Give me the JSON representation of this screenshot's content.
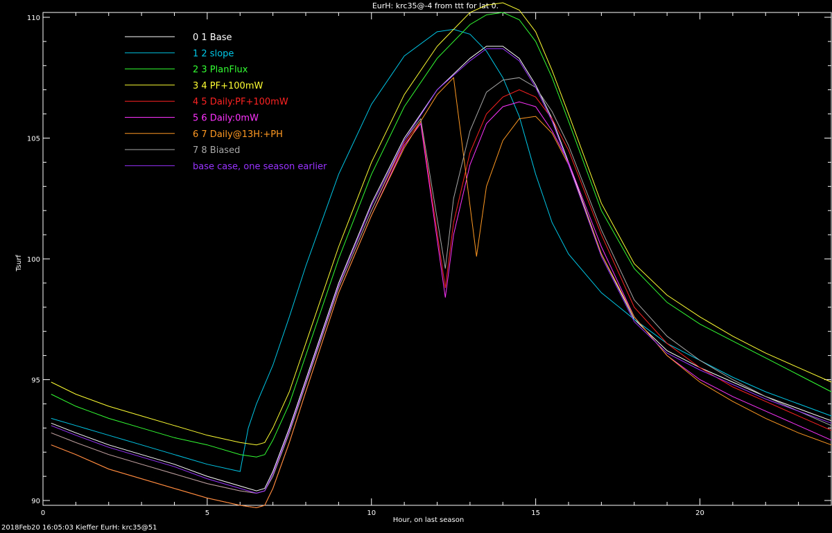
{
  "footer": "2018Feb20 16:05:03 Kieffer EurH: krc35@51",
  "chart_data": {
    "type": "line",
    "title": "EurH: krc35@-4 from ttt for lat 0.",
    "xlabel": "Hour, on last season",
    "ylabel": "Tsurf",
    "xlim": [
      0,
      24
    ],
    "ylim": [
      89.8,
      110.2
    ],
    "xticks": [
      0,
      5,
      10,
      15,
      20
    ],
    "yticks": [
      90,
      95,
      100,
      105,
      110
    ],
    "grid": false,
    "legend_position": "top-left",
    "series": [
      {
        "name": "0 1 Base",
        "color": "#ffffff",
        "x": [
          0.25,
          1,
          2,
          3,
          4,
          5,
          6,
          6.5,
          6.75,
          7,
          7.5,
          8,
          9,
          10,
          11,
          12,
          13,
          13.5,
          14,
          14.5,
          15,
          15.5,
          16,
          17,
          18,
          19,
          20,
          21,
          22,
          23,
          24
        ],
        "y": [
          93.2,
          92.8,
          92.3,
          91.9,
          91.5,
          91.0,
          90.6,
          90.4,
          90.5,
          91.2,
          93.0,
          95.0,
          99.0,
          102.3,
          105.0,
          107.0,
          108.3,
          108.8,
          108.8,
          108.3,
          107.2,
          105.8,
          104.0,
          100.2,
          97.5,
          96.2,
          95.5,
          94.9,
          94.3,
          93.8,
          93.3
        ]
      },
      {
        "name": "1 2 slope",
        "color": "#00c8e8",
        "x": [
          0.25,
          1,
          2,
          3,
          4,
          5,
          6,
          6.25,
          6.5,
          7,
          7.5,
          8,
          9,
          10,
          11,
          12,
          12.5,
          13,
          13.5,
          14,
          14.5,
          15,
          15.5,
          16,
          17,
          18,
          19,
          20,
          21,
          22,
          23,
          24
        ],
        "y": [
          93.4,
          93.1,
          92.7,
          92.3,
          91.9,
          91.5,
          91.2,
          93.0,
          94.0,
          95.6,
          97.6,
          99.7,
          103.5,
          106.4,
          108.4,
          109.4,
          109.5,
          109.3,
          108.6,
          107.5,
          105.9,
          103.5,
          101.5,
          100.2,
          98.6,
          97.5,
          96.5,
          95.8,
          95.1,
          94.5,
          94.0,
          93.5
        ]
      },
      {
        "name": "2 3 PlanFlux",
        "color": "#33ff33",
        "x": [
          0.25,
          1,
          2,
          3,
          4,
          5,
          6,
          6.5,
          6.75,
          7,
          7.5,
          8,
          9,
          10,
          11,
          12,
          13,
          13.5,
          14,
          14.5,
          15,
          15.5,
          16,
          17,
          18,
          19,
          20,
          21,
          22,
          23,
          24
        ],
        "y": [
          94.4,
          93.9,
          93.4,
          93.0,
          92.6,
          92.3,
          91.9,
          91.8,
          91.9,
          92.5,
          94.0,
          96.0,
          100.0,
          103.5,
          106.3,
          108.3,
          109.7,
          110.1,
          110.2,
          109.9,
          109.0,
          107.5,
          105.7,
          102.0,
          99.6,
          98.2,
          97.3,
          96.6,
          95.9,
          95.2,
          94.5
        ]
      },
      {
        "name": "3 4 PF+100mW",
        "color": "#ffff33",
        "x": [
          0.25,
          1,
          2,
          3,
          4,
          5,
          6,
          6.5,
          6.75,
          7,
          7.5,
          8,
          9,
          10,
          11,
          12,
          13,
          13.5,
          14,
          14.5,
          15,
          15.5,
          16,
          17,
          18,
          19,
          20,
          21,
          22,
          23,
          24
        ],
        "y": [
          94.9,
          94.4,
          93.9,
          93.5,
          93.1,
          92.7,
          92.4,
          92.3,
          92.4,
          93.0,
          94.5,
          96.5,
          100.5,
          104.0,
          106.8,
          108.8,
          110.2,
          110.5,
          110.6,
          110.3,
          109.4,
          107.8,
          106.0,
          102.3,
          99.8,
          98.5,
          97.6,
          96.8,
          96.1,
          95.5,
          94.9
        ]
      },
      {
        "name": "4 5 Daily:PF+100mW",
        "color": "#ff2222",
        "x": [
          0.25,
          1,
          2,
          3,
          4,
          5,
          6,
          6.5,
          6.75,
          7,
          7.5,
          8,
          9,
          10,
          11,
          11.5,
          12.25,
          12.5,
          13,
          13.5,
          14,
          14.5,
          15,
          15.5,
          16,
          17,
          18,
          19,
          20,
          21,
          22,
          23,
          24
        ],
        "y": [
          92.8,
          92.4,
          91.9,
          91.5,
          91.1,
          90.7,
          90.4,
          90.3,
          90.4,
          91.0,
          92.8,
          94.8,
          98.8,
          102.0,
          104.8,
          105.7,
          98.8,
          101.5,
          104.4,
          106.0,
          106.7,
          107.0,
          106.7,
          105.8,
          104.5,
          101.0,
          98.0,
          96.5,
          95.5,
          94.7,
          94.1,
          93.5,
          92.9
        ]
      },
      {
        "name": "5 6 Daily:0mW",
        "color": "#ff33ff",
        "x": [
          0.25,
          1,
          2,
          3,
          4,
          5,
          6,
          6.5,
          6.75,
          7,
          7.5,
          8,
          9,
          10,
          11,
          11.5,
          12.25,
          12.5,
          13,
          13.5,
          14,
          14.5,
          15,
          15.5,
          16,
          17,
          18,
          19,
          20,
          21,
          22,
          23,
          24
        ],
        "y": [
          92.3,
          91.9,
          91.3,
          90.9,
          90.5,
          90.1,
          89.8,
          89.7,
          89.8,
          90.5,
          92.4,
          94.5,
          98.6,
          101.8,
          104.7,
          105.6,
          98.4,
          101.0,
          103.9,
          105.6,
          106.3,
          106.5,
          106.3,
          105.3,
          104.0,
          100.5,
          97.6,
          96.0,
          95.0,
          94.3,
          93.7,
          93.1,
          92.5
        ]
      },
      {
        "name": "6 7 Daily@13H:+PH",
        "color": "#ff9922",
        "x": [
          0.25,
          1,
          2,
          3,
          4,
          5,
          6,
          6.5,
          6.75,
          7,
          7.5,
          8,
          9,
          10,
          11,
          12,
          12.5,
          13.2,
          13.5,
          14,
          14.5,
          15,
          15.5,
          16,
          17,
          18,
          19,
          20,
          21,
          22,
          23,
          24
        ],
        "y": [
          92.3,
          91.9,
          91.3,
          90.9,
          90.5,
          90.1,
          89.8,
          89.7,
          89.8,
          90.5,
          92.4,
          94.5,
          98.6,
          101.8,
          104.6,
          106.8,
          107.5,
          100.1,
          103.0,
          104.9,
          105.8,
          105.9,
          105.2,
          103.9,
          100.2,
          97.6,
          96.0,
          94.9,
          94.1,
          93.4,
          92.8,
          92.3
        ]
      },
      {
        "name": "7 8 Biased",
        "color": "#a8a8a8",
        "x": [
          0.25,
          1,
          2,
          3,
          4,
          5,
          6,
          6.5,
          6.75,
          7,
          7.5,
          8,
          9,
          10,
          11,
          11.5,
          12.25,
          12.5,
          13,
          13.5,
          14,
          14.5,
          15,
          15.5,
          16,
          17,
          18,
          19,
          20,
          21,
          22,
          23,
          24
        ],
        "y": [
          92.8,
          92.4,
          91.9,
          91.5,
          91.1,
          90.7,
          90.4,
          90.3,
          90.4,
          91.0,
          92.8,
          94.8,
          98.8,
          102.0,
          104.9,
          105.8,
          99.6,
          102.5,
          105.3,
          106.9,
          107.4,
          107.5,
          107.1,
          106.1,
          104.7,
          101.2,
          98.3,
          96.8,
          95.8,
          95.0,
          94.3,
          93.7,
          93.1
        ]
      },
      {
        "name": "base case, one season earlier",
        "color": "#9933ff",
        "x": [
          0.25,
          1,
          2,
          3,
          4,
          5,
          6,
          6.5,
          6.75,
          7,
          7.5,
          8,
          9,
          10,
          11,
          12,
          13,
          13.5,
          14,
          14.5,
          15,
          15.5,
          16,
          17,
          18,
          19,
          20,
          21,
          22,
          23,
          24
        ],
        "y": [
          93.1,
          92.7,
          92.2,
          91.8,
          91.4,
          90.9,
          90.5,
          90.3,
          90.4,
          91.1,
          92.9,
          94.9,
          98.9,
          102.2,
          104.9,
          107.0,
          108.2,
          108.7,
          108.7,
          108.2,
          107.1,
          105.7,
          103.9,
          100.1,
          97.4,
          96.1,
          95.4,
          94.8,
          94.2,
          93.7,
          93.2
        ]
      }
    ]
  }
}
